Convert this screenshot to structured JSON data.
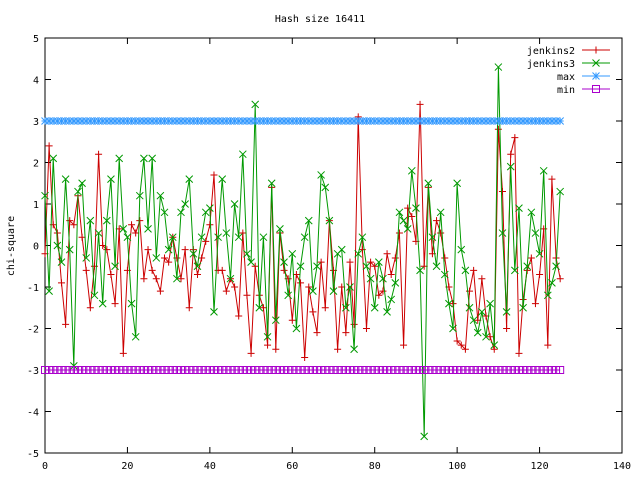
{
  "chart_data": {
    "type": "line",
    "title": "Hash size 16411",
    "xlabel": "",
    "ylabel": "chi-square",
    "xlim": [
      0,
      140
    ],
    "ylim": [
      -5,
      5
    ],
    "xticks": [
      0,
      20,
      40,
      60,
      80,
      100,
      120,
      140
    ],
    "yticks": [
      -5,
      -4,
      -3,
      -2,
      -1,
      0,
      1,
      2,
      3,
      4,
      5
    ],
    "grid": false,
    "legend_position": "top-right",
    "series": [
      {
        "name": "jenkins2",
        "color": "#cc0000",
        "marker": "plus",
        "x": [
          0,
          1,
          2,
          3,
          4,
          5,
          6,
          7,
          8,
          9,
          10,
          11,
          12,
          13,
          14,
          15,
          16,
          17,
          18,
          19,
          20,
          21,
          22,
          23,
          24,
          25,
          26,
          27,
          28,
          29,
          30,
          31,
          32,
          33,
          34,
          35,
          36,
          37,
          38,
          39,
          40,
          41,
          42,
          43,
          44,
          45,
          46,
          47,
          48,
          49,
          50,
          51,
          52,
          53,
          54,
          55,
          56,
          57,
          58,
          59,
          60,
          61,
          62,
          63,
          64,
          65,
          66,
          67,
          68,
          69,
          70,
          71,
          72,
          73,
          74,
          75,
          76,
          77,
          78,
          79,
          80,
          81,
          82,
          83,
          84,
          85,
          86,
          87,
          88,
          89,
          90,
          91,
          92,
          93,
          94,
          95,
          96,
          97,
          98,
          99,
          100,
          101,
          102,
          103,
          104,
          105,
          106,
          107,
          108,
          109,
          110,
          111,
          112,
          113,
          114,
          115,
          116,
          117,
          118,
          119,
          120,
          121,
          122,
          123,
          124,
          125
        ],
        "y": [
          -0.2,
          2.4,
          0.5,
          0.3,
          -0.9,
          -1.9,
          0.6,
          0.5,
          1.2,
          0.2,
          -0.6,
          -1.5,
          -0.5,
          2.2,
          0.0,
          -0.1,
          -0.7,
          -1.4,
          0.4,
          -2.6,
          -0.6,
          0.5,
          0.3,
          0.6,
          -0.8,
          -0.1,
          -0.6,
          -0.8,
          -1.1,
          -0.3,
          -0.4,
          0.2,
          -0.3,
          -0.8,
          -0.1,
          -1.5,
          -0.1,
          -0.7,
          -0.3,
          0.1,
          0.5,
          1.7,
          -0.6,
          -0.6,
          -1.1,
          -0.8,
          -1.0,
          -1.7,
          0.3,
          -1.2,
          -2.6,
          -0.5,
          -1.2,
          -1.5,
          -2.4,
          1.4,
          -2.5,
          0.3,
          -0.6,
          -0.8,
          -1.8,
          -0.7,
          -0.9,
          -2.7,
          -1.0,
          -1.6,
          -2.1,
          -0.4,
          -1.5,
          0.6,
          -0.6,
          -2.5,
          -1.0,
          -2.1,
          -0.4,
          -1.9,
          3.1,
          -0.1,
          -2.0,
          -0.4,
          -0.5,
          -1.2,
          -1.1,
          -0.2,
          -0.7,
          -0.3,
          0.3,
          -2.4,
          0.9,
          0.7,
          0.1,
          3.4,
          -0.5,
          1.4,
          -0.2,
          0.6,
          0.3,
          -0.3,
          -1.0,
          -1.4,
          -2.3,
          -2.4,
          -2.5,
          -1.1,
          -0.6,
          -1.8,
          -0.8,
          -1.7,
          -2.2,
          -2.5,
          2.8,
          1.3,
          -2.0,
          2.2,
          2.6,
          -2.6,
          -1.3,
          -0.6,
          -0.3,
          -1.4,
          -0.7,
          0.4,
          -2.4,
          1.6,
          -0.3,
          -0.8
        ]
      },
      {
        "name": "jenkins3",
        "color": "#009900",
        "marker": "x",
        "x": [
          0,
          1,
          2,
          3,
          4,
          5,
          6,
          7,
          8,
          9,
          10,
          11,
          12,
          13,
          14,
          15,
          16,
          17,
          18,
          19,
          20,
          21,
          22,
          23,
          24,
          25,
          26,
          27,
          28,
          29,
          30,
          31,
          32,
          33,
          34,
          35,
          36,
          37,
          38,
          39,
          40,
          41,
          42,
          43,
          44,
          45,
          46,
          47,
          48,
          49,
          50,
          51,
          52,
          53,
          54,
          55,
          56,
          57,
          58,
          59,
          60,
          61,
          62,
          63,
          64,
          65,
          66,
          67,
          68,
          69,
          70,
          71,
          72,
          73,
          74,
          75,
          76,
          77,
          78,
          79,
          80,
          81,
          82,
          83,
          84,
          85,
          86,
          87,
          88,
          89,
          90,
          91,
          92,
          93,
          94,
          95,
          96,
          97,
          98,
          99,
          100,
          101,
          102,
          103,
          104,
          105,
          106,
          107,
          108,
          109,
          110,
          111,
          112,
          113,
          114,
          115,
          116,
          117,
          118,
          119,
          120,
          121,
          122,
          123,
          124,
          125
        ],
        "y": [
          1.2,
          -1.1,
          2.1,
          0.0,
          -0.4,
          1.6,
          -0.1,
          -2.9,
          1.3,
          1.5,
          -0.3,
          0.6,
          -1.2,
          0.3,
          -1.4,
          0.6,
          1.6,
          -0.5,
          2.1,
          0.4,
          0.2,
          -1.4,
          -2.2,
          1.2,
          2.1,
          0.4,
          2.1,
          -0.3,
          1.2,
          0.8,
          -0.1,
          0.2,
          -0.8,
          0.8,
          1.0,
          1.6,
          -0.2,
          -0.5,
          0.2,
          0.8,
          0.9,
          -1.6,
          0.2,
          1.6,
          0.3,
          -0.8,
          1.0,
          0.2,
          2.2,
          -0.2,
          -0.4,
          3.4,
          -1.5,
          0.2,
          -2.2,
          1.5,
          -1.8,
          0.4,
          -0.4,
          -1.2,
          -0.2,
          -2.0,
          -0.5,
          0.2,
          0.6,
          -1.1,
          -0.5,
          1.7,
          1.4,
          0.6,
          -1.1,
          -0.2,
          -0.1,
          -1.5,
          -1.0,
          -2.5,
          -0.2,
          0.2,
          -0.5,
          -0.8,
          -1.5,
          -0.4,
          -0.8,
          -1.6,
          -1.3,
          -0.9,
          0.8,
          0.6,
          0.4,
          1.8,
          0.9,
          -0.6,
          -4.6,
          1.5,
          0.2,
          -0.5,
          0.8,
          -0.7,
          -1.4,
          -2.0,
          1.5,
          -0.1,
          -0.6,
          -1.5,
          -1.8,
          -2.1,
          -1.6,
          -2.2,
          -1.4,
          -2.4,
          4.3,
          0.3,
          -1.6,
          1.9,
          -0.6,
          0.9,
          -1.5,
          -0.5,
          0.8,
          0.3,
          -0.2,
          1.8,
          -1.2,
          -0.9,
          -0.5,
          1.3
        ]
      },
      {
        "name": "max",
        "color": "#3399ff",
        "marker": "star",
        "constant": 3,
        "x_start": 0,
        "x_end": 125
      },
      {
        "name": "min",
        "color": "#aa00cc",
        "marker": "square",
        "constant": -3,
        "x_start": 0,
        "x_end": 125
      }
    ]
  }
}
